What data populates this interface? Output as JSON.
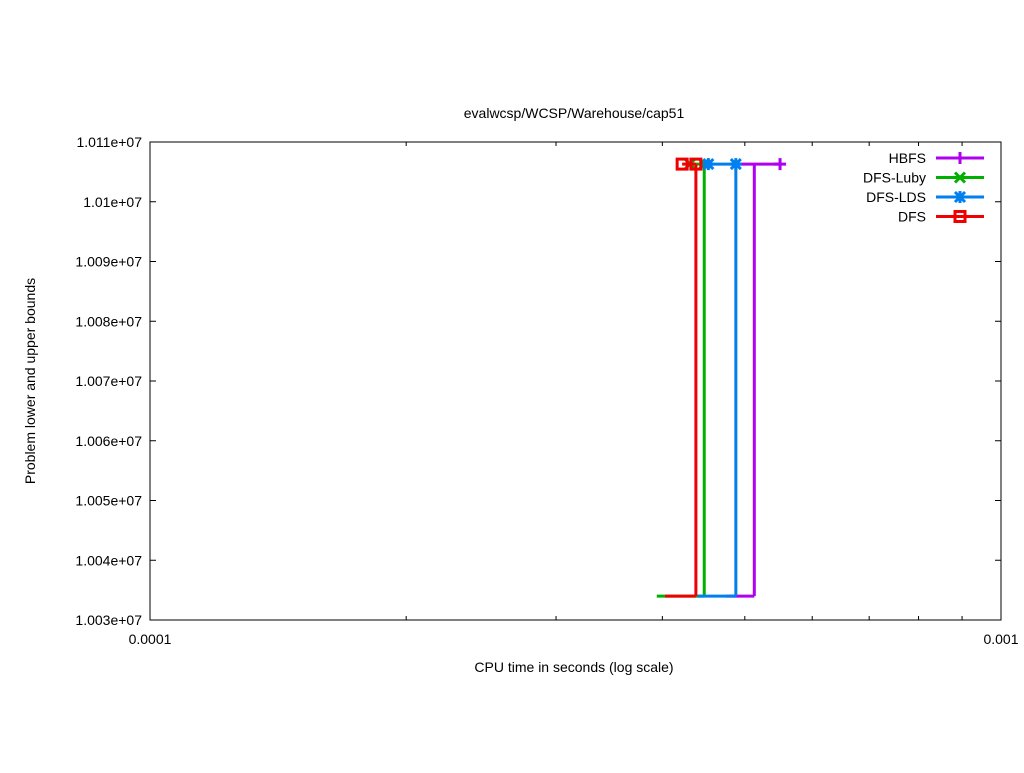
{
  "chart_data": {
    "type": "line",
    "title": "evalwcsp/WCSP/Warehouse/cap51",
    "xlabel": "CPU time in seconds (log scale)",
    "ylabel": "Problem lower and upper bounds",
    "xscale": "log",
    "xlim": [
      0.0001,
      0.001
    ],
    "ylim": [
      10030000,
      10110000
    ],
    "xticks": [
      {
        "v": 0.0001,
        "label": "0.0001"
      },
      {
        "v": 0.001,
        "label": "0.001"
      }
    ],
    "yticks": [
      {
        "v": 10030000,
        "label": "1.003e+07"
      },
      {
        "v": 10040000,
        "label": "1.004e+07"
      },
      {
        "v": 10050000,
        "label": "1.005e+07"
      },
      {
        "v": 10060000,
        "label": "1.006e+07"
      },
      {
        "v": 10070000,
        "label": "1.007e+07"
      },
      {
        "v": 10080000,
        "label": "1.008e+07"
      },
      {
        "v": 10090000,
        "label": "1.009e+07"
      },
      {
        "v": 10100000,
        "label": "1.01e+07"
      },
      {
        "v": 10110000,
        "label": "1.011e+07"
      }
    ],
    "grid": false,
    "legend_position": "top-right",
    "lower_bound": 10034000,
    "upper_bound": 10106300,
    "series": [
      {
        "name": "HBFS",
        "color": "#b000f0",
        "marker": "plus",
        "lower": [
          0.000476,
          0.000513
        ],
        "vertical": 0.000513,
        "upper": [
          0.000488,
          0.00055
        ],
        "markers": [
          0.00055
        ]
      },
      {
        "name": "DFS-Luby",
        "color": "#00b000",
        "marker": "x",
        "lower": [
          0.000394,
          0.000448
        ],
        "vertical": 0.000448,
        "upper": [
          0.000431,
          0.000448
        ],
        "markers": [
          0.000431,
          0.000448
        ]
      },
      {
        "name": "DFS-LDS",
        "color": "#0080f0",
        "marker": "star",
        "lower": [
          0.00044,
          0.000488
        ],
        "vertical": 0.000488,
        "upper": [
          0.000453,
          0.000488
        ],
        "markers": [
          0.000453,
          0.000488
        ]
      },
      {
        "name": "DFS",
        "color": "#f00000",
        "marker": "square",
        "lower": [
          0.000403,
          0.000438
        ],
        "vertical": 0.000438,
        "upper": [
          0.000422,
          0.000438
        ],
        "markers": [
          0.000422,
          0.000438
        ]
      }
    ]
  }
}
